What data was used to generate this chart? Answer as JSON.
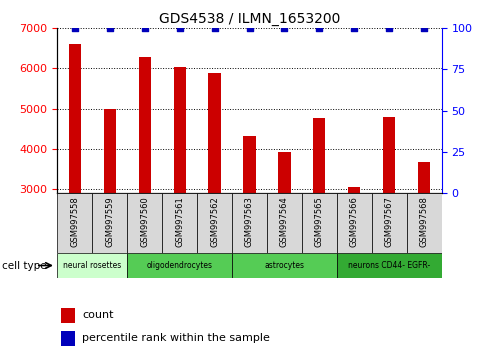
{
  "title": "GDS4538 / ILMN_1653200",
  "samples": [
    "GSM997558",
    "GSM997559",
    "GSM997560",
    "GSM997561",
    "GSM997562",
    "GSM997563",
    "GSM997564",
    "GSM997565",
    "GSM997566",
    "GSM997567",
    "GSM997568"
  ],
  "counts": [
    6620,
    4980,
    6280,
    6040,
    5890,
    4310,
    3920,
    4760,
    3060,
    4790,
    3680
  ],
  "percentiles": [
    100,
    100,
    100,
    100,
    100,
    100,
    100,
    100,
    100,
    100,
    100
  ],
  "bar_color": "#cc0000",
  "dot_color": "#0000bb",
  "ylim_left": [
    2900,
    7000
  ],
  "ylim_right": [
    0,
    100
  ],
  "yticks_left": [
    3000,
    4000,
    5000,
    6000,
    7000
  ],
  "yticks_right": [
    0,
    25,
    50,
    75,
    100
  ],
  "cell_groups": [
    {
      "label": "neural rosettes",
      "start": 0,
      "end": 2,
      "color": "#ccffcc"
    },
    {
      "label": "oligodendrocytes",
      "start": 2,
      "end": 5,
      "color": "#55cc55"
    },
    {
      "label": "astrocytes",
      "start": 5,
      "end": 8,
      "color": "#55cc55"
    },
    {
      "label": "neurons CD44- EGFR-",
      "start": 8,
      "end": 11,
      "color": "#33aa33"
    }
  ],
  "sample_box_color": "#d8d8d8",
  "legend_count_label": "count",
  "legend_pct_label": "percentile rank within the sample",
  "cell_type_label": "cell type"
}
